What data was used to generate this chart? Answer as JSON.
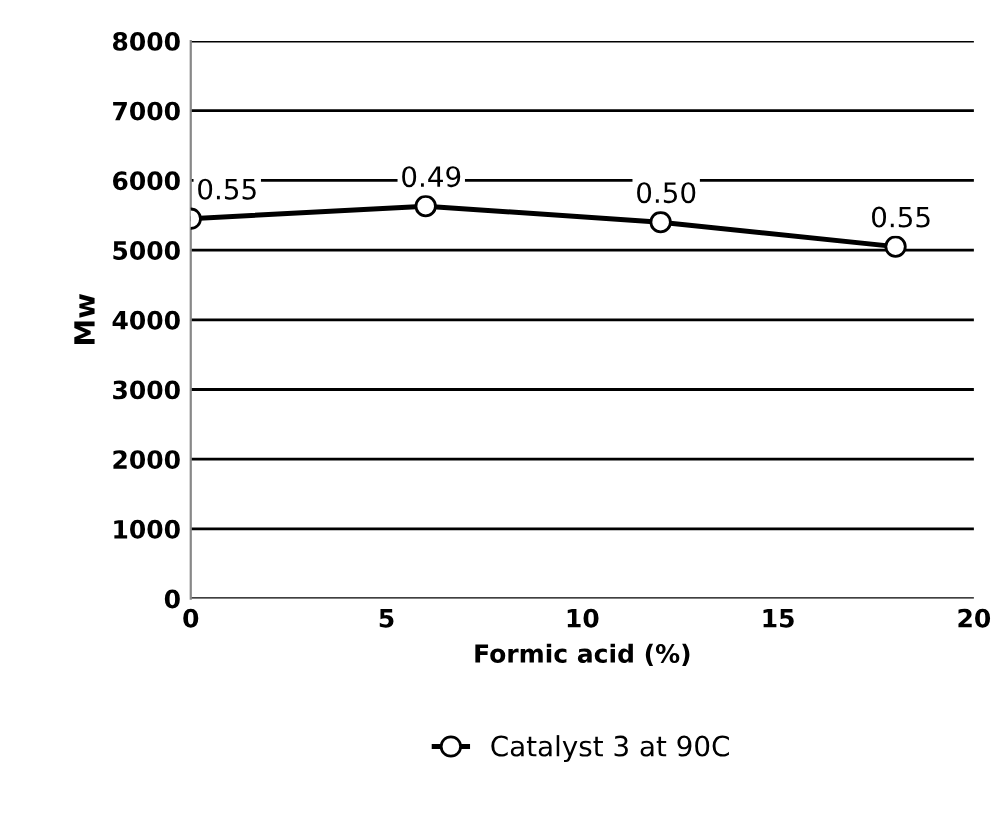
{
  "chart_data": {
    "type": "line",
    "xlabel": "Formic acid (%)",
    "ylabel": "Mw",
    "x": [
      0,
      6,
      12,
      18
    ],
    "series": [
      {
        "name": "Catalyst 3 at 90C",
        "color": "#000000",
        "values": [
          5450,
          5630,
          5400,
          5050
        ]
      }
    ],
    "xlim": [
      0,
      20
    ],
    "xticks": [
      0,
      5,
      10,
      15,
      20
    ],
    "ylim": [
      0,
      8000
    ],
    "yticks": [
      0,
      1000,
      2000,
      3000,
      4000,
      5000,
      6000,
      7000,
      8000
    ],
    "grid": "y",
    "legend": "bottom",
    "marker": "circle",
    "line_style": "solid",
    "annotations": [
      {
        "text": "0.55",
        "x": 0,
        "y": 5450
      },
      {
        "text": "0.49",
        "x": 6,
        "y": 5630
      },
      {
        "text": "0.50",
        "x": 12,
        "y": 5400
      },
      {
        "text": "0.55",
        "x": 18,
        "y": 5050
      }
    ]
  }
}
